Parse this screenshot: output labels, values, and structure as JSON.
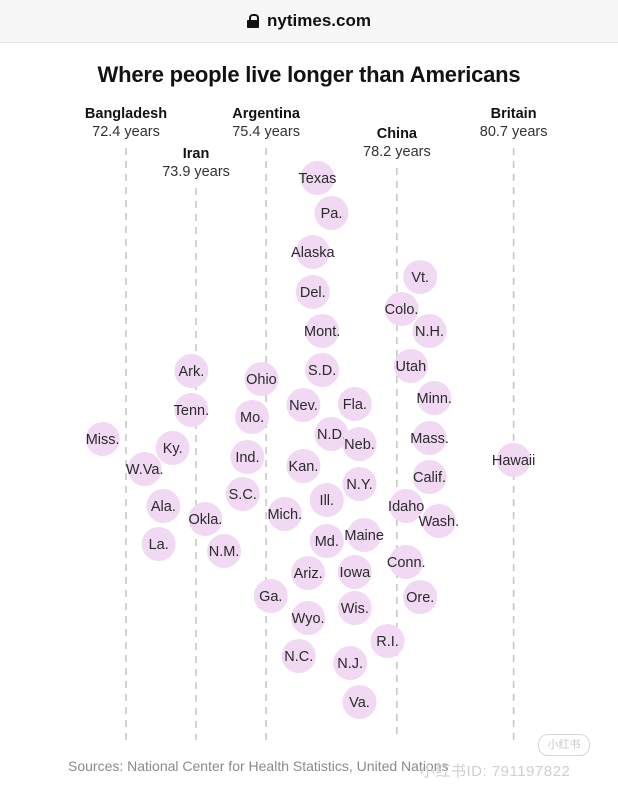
{
  "browser": {
    "url": "nytimes.com",
    "lock_icon": "lock-icon"
  },
  "watermark": {
    "logo_text": "小红书",
    "text": "小红书ID: 791197822"
  },
  "chart_data": {
    "type": "scatter",
    "title": "Where people live longer than Americans",
    "source": "Sources: National Center for Health Statistics, United Nations",
    "bubble_color": "#f1d8f3",
    "reference_lines": [
      {
        "country": "Bangladesh",
        "label": "72.4 years",
        "value": 72.4,
        "side": "left"
      },
      {
        "country": "Iran",
        "label": "73.9 years",
        "value": 73.9,
        "side": "center"
      },
      {
        "country": "Argentina",
        "label": "75.4 years",
        "value": 75.4,
        "side": "center"
      },
      {
        "country": "China",
        "label": "78.2 years",
        "value": 78.2,
        "side": "center"
      },
      {
        "country": "Britain",
        "label": "80.7 years",
        "value": 80.7,
        "side": "center"
      }
    ],
    "states": [
      {
        "label": "Miss.",
        "value": 71.9
      },
      {
        "label": "W.Va.",
        "value": 72.8
      },
      {
        "label": "Ky.",
        "value": 73.4
      },
      {
        "label": "Ala.",
        "value": 73.2
      },
      {
        "label": "La.",
        "value": 73.1
      },
      {
        "label": "Ark.",
        "value": 73.8
      },
      {
        "label": "Tenn.",
        "value": 73.8
      },
      {
        "label": "Okla.",
        "value": 74.1
      },
      {
        "label": "N.M.",
        "value": 74.5
      },
      {
        "label": "Ohio",
        "value": 75.3
      },
      {
        "label": "Mo.",
        "value": 75.1
      },
      {
        "label": "Ind.",
        "value": 75.0
      },
      {
        "label": "S.C.",
        "value": 74.9
      },
      {
        "label": "Texas",
        "value": 76.5
      },
      {
        "label": "Pa.",
        "value": 76.8
      },
      {
        "label": "Alaska",
        "value": 76.4
      },
      {
        "label": "Del.",
        "value": 76.4
      },
      {
        "label": "Mont.",
        "value": 76.6
      },
      {
        "label": "S.D.",
        "value": 76.6
      },
      {
        "label": "Nev.",
        "value": 76.2
      },
      {
        "label": "N.D.",
        "value": 76.8
      },
      {
        "label": "Kan.",
        "value": 76.2
      },
      {
        "label": "Ill.",
        "value": 76.7
      },
      {
        "label": "Mich.",
        "value": 75.8
      },
      {
        "label": "Md.",
        "value": 76.7
      },
      {
        "label": "Ariz.",
        "value": 76.3
      },
      {
        "label": "Ga.",
        "value": 75.5
      },
      {
        "label": "Wyo.",
        "value": 76.3
      },
      {
        "label": "N.C.",
        "value": 76.1
      },
      {
        "label": "Fla.",
        "value": 77.3
      },
      {
        "label": "Neb.",
        "value": 77.4
      },
      {
        "label": "N.Y.",
        "value": 77.4
      },
      {
        "label": "Maine",
        "value": 77.5
      },
      {
        "label": "Iowa",
        "value": 77.3
      },
      {
        "label": "Wis.",
        "value": 77.3
      },
      {
        "label": "N.J.",
        "value": 77.2
      },
      {
        "label": "Va.",
        "value": 77.4
      },
      {
        "label": "R.I.",
        "value": 78.0
      },
      {
        "label": "Vt.",
        "value": 78.7
      },
      {
        "label": "Colo.",
        "value": 78.3
      },
      {
        "label": "N.H.",
        "value": 78.9
      },
      {
        "label": "Utah",
        "value": 78.5
      },
      {
        "label": "Minn.",
        "value": 79.0
      },
      {
        "label": "Mass.",
        "value": 78.9
      },
      {
        "label": "Calif.",
        "value": 78.9
      },
      {
        "label": "Idaho",
        "value": 78.4
      },
      {
        "label": "Wash.",
        "value": 79.1
      },
      {
        "label": "Conn.",
        "value": 78.4
      },
      {
        "label": "Ore.",
        "value": 78.7
      },
      {
        "label": "Hawaii",
        "value": 80.7
      }
    ]
  }
}
